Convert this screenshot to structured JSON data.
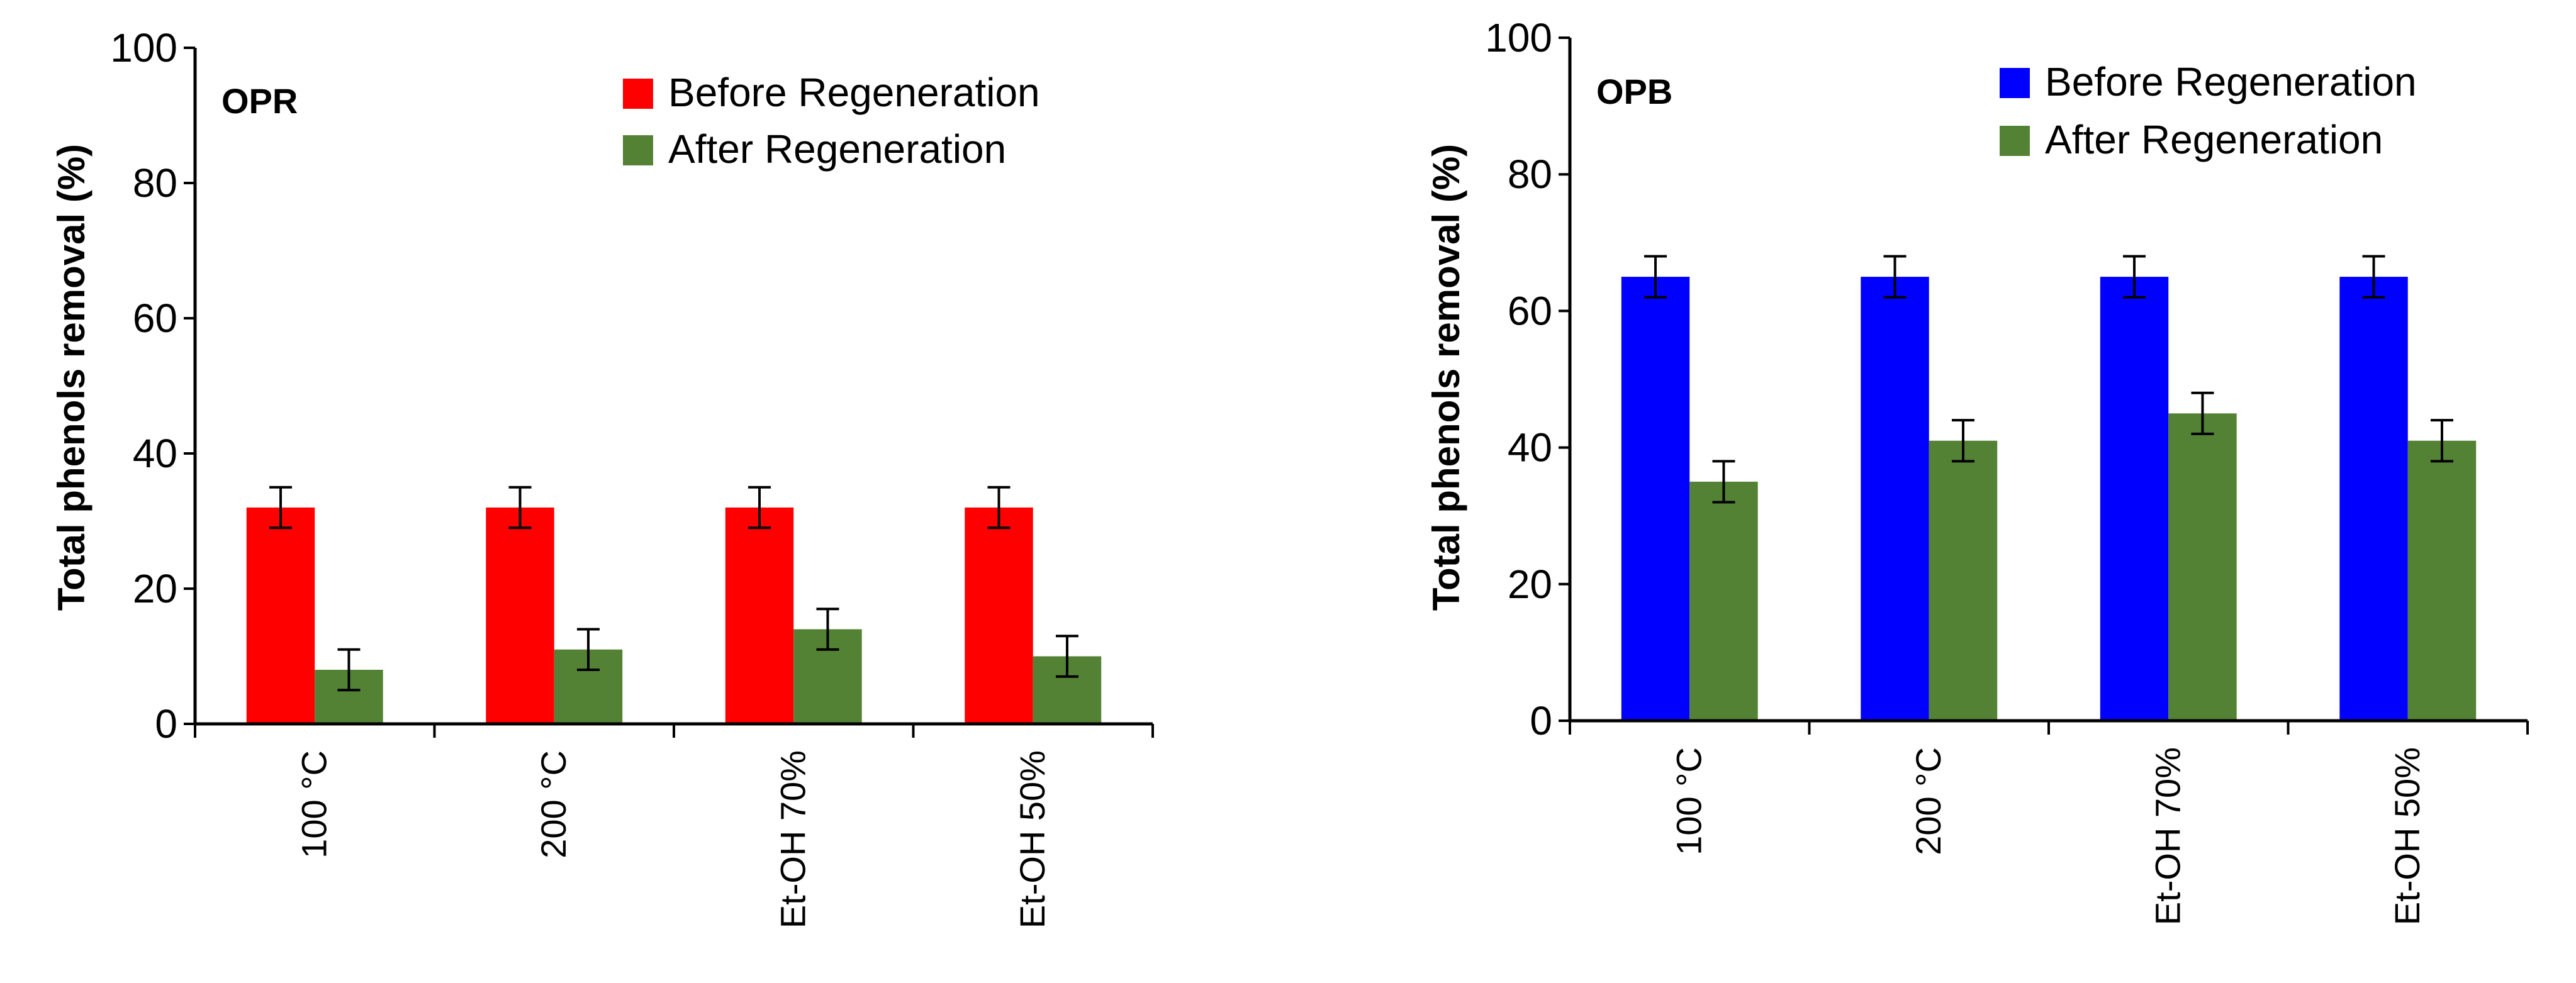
{
  "chart_data": [
    {
      "type": "bar",
      "panel_label": "OPR",
      "title": "",
      "xlabel": "",
      "ylabel": "Total phenols removal (%)",
      "ylim": [
        0,
        100
      ],
      "yticks": [
        0,
        20,
        40,
        60,
        80,
        100
      ],
      "categories": [
        "100 °C",
        "200 °C",
        "Et-OH 70%",
        "Et-OH 50%"
      ],
      "series": [
        {
          "name": "Before Regeneration",
          "color": "#ff0000",
          "values": [
            32,
            32,
            32,
            32
          ],
          "errors": [
            3,
            3,
            3,
            3
          ]
        },
        {
          "name": "After Regeneration",
          "color": "#548235",
          "values": [
            8,
            11,
            14,
            10
          ],
          "errors": [
            3,
            3,
            3,
            3
          ]
        }
      ],
      "legend": "top-right",
      "grid": false
    },
    {
      "type": "bar",
      "panel_label": "OPB",
      "title": "",
      "xlabel": "",
      "ylabel": "Total phenols removal (%)",
      "ylim": [
        0,
        100
      ],
      "yticks": [
        0,
        20,
        40,
        60,
        80,
        100
      ],
      "categories": [
        "100 °C",
        "200 °C",
        "Et-OH 70%",
        "Et-OH 50%"
      ],
      "series": [
        {
          "name": "Before Regeneration",
          "color": "#0000ff",
          "values": [
            65,
            65,
            65,
            65
          ],
          "errors": [
            3,
            3,
            3,
            3
          ]
        },
        {
          "name": "After Regeneration",
          "color": "#548235",
          "values": [
            35,
            41,
            45,
            41
          ],
          "errors": [
            3,
            3,
            3,
            3
          ]
        }
      ],
      "legend": "top-right",
      "grid": false
    }
  ]
}
